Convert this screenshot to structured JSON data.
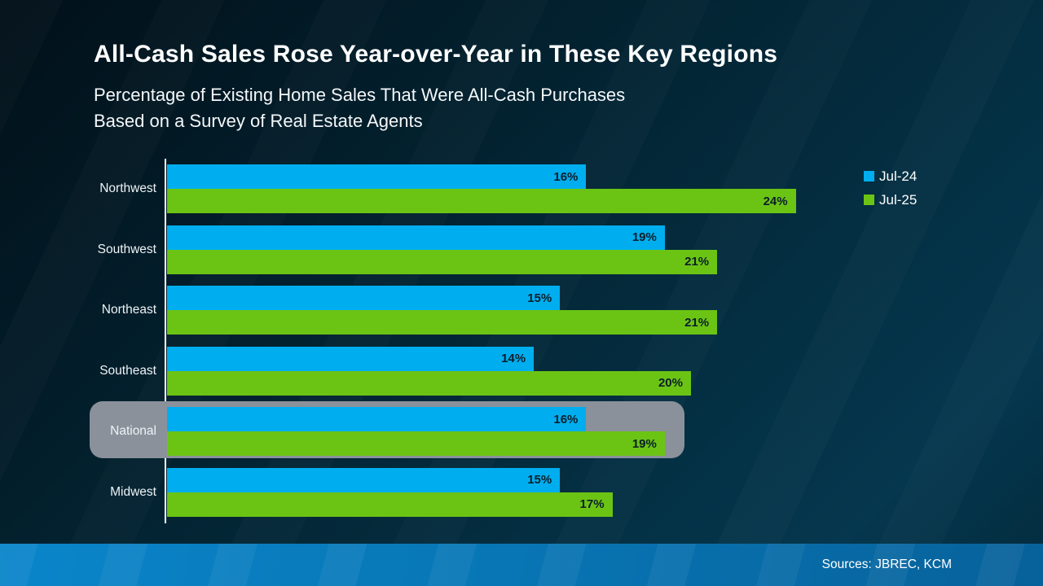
{
  "slide": {
    "title": "All-Cash Sales Rose Year-over-Year in These Key Regions",
    "subtitle_line1": "Percentage of Existing Home Sales That Were All-Cash Purchases",
    "subtitle_line2": "Based on a Survey of Real Estate Agents",
    "footer": {
      "sources": "Sources: JBREC, KCM"
    }
  },
  "colors": {
    "background_dark": "#021019",
    "background_light": "#05374e",
    "series_jul24": "#00AEEF",
    "series_jul25": "#6BC414",
    "highlight_box": "#8A919B",
    "value_label": "#0C1E2A",
    "axis_line": "#FFFFFF",
    "footer_band_left": "#0A85CA",
    "footer_band_right": "#07619A"
  },
  "legend": {
    "position": "top-right",
    "items": [
      {
        "label": "Jul-24",
        "color": "#00AEEF"
      },
      {
        "label": "Jul-25",
        "color": "#6BC414"
      }
    ]
  },
  "chart_data": {
    "type": "bar",
    "orientation": "horizontal",
    "title": "All-Cash Sales Rose Year-over-Year in These Key Regions",
    "subtitle": "Percentage of Existing Home Sales That Were All-Cash Purchases Based on a Survey of Real Estate Agents",
    "categories": [
      "Northwest",
      "Southwest",
      "Northeast",
      "Southeast",
      "National",
      "Midwest"
    ],
    "series": [
      {
        "name": "Jul-24",
        "color": "#00AEEF",
        "values": [
          16,
          19,
          15,
          14,
          16,
          15
        ]
      },
      {
        "name": "Jul-25",
        "color": "#6BC414",
        "values": [
          24,
          21,
          21,
          20,
          19,
          17
        ]
      }
    ],
    "value_suffix": "%",
    "data_labels": true,
    "highlighted_category": "National",
    "axis_range": [
      0,
      24
    ],
    "gridlines": false,
    "legend_position": "top-right",
    "sources": "Sources: JBREC, KCM"
  }
}
